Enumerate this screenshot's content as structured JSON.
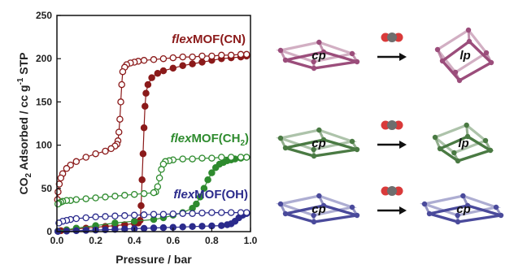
{
  "colors": {
    "CN": "#8b1a1a",
    "CH2": "#2e8b2e",
    "OH": "#2b2b8c",
    "pink_frame": "#9b4d7b",
    "green_frame": "#4a7a43",
    "blue_frame": "#4a4a9b",
    "co2_red": "#d93a3a",
    "co2_grey": "#6e6e6e"
  },
  "labels": {
    "cn": {
      "prefix": "flex",
      "suffix": "MOF(CN)"
    },
    "ch2": {
      "prefix": "flex",
      "suffix": "MOF(CH",
      "sub": "2",
      "close": ")"
    },
    "oh": {
      "prefix": "flex",
      "suffix": "MOF(OH)"
    }
  },
  "structures": [
    {
      "row": "cn",
      "before": "cp",
      "after": "lp",
      "frame_color": "pink_frame",
      "gas_icon": "co2-molecule-icon",
      "arrow": "right-arrow-icon"
    },
    {
      "row": "ch2",
      "before": "cp",
      "after": "lp",
      "frame_color": "green_frame",
      "gas_icon": "co2-molecule-icon",
      "arrow": "right-arrow-icon"
    },
    {
      "row": "oh",
      "before": "cp",
      "after": "cp",
      "frame_color": "blue_frame",
      "gas_icon": "co2-molecule-icon",
      "arrow": "right-arrow-icon"
    }
  ],
  "chart_data": {
    "type": "scatter",
    "title": "",
    "xlabel": "Pressure / bar",
    "ylabel": {
      "a": "CO",
      "sub": "2",
      "b": " Adsorbed / cc g",
      "sup": "-1",
      "c": " STP"
    },
    "xlim": [
      0.0,
      1.0
    ],
    "ylim": [
      0,
      250
    ],
    "xticks": [
      "0.0",
      "0.2",
      "0.4",
      "0.6",
      "0.8",
      "1.0"
    ],
    "yticks": [
      "0",
      "50",
      "100",
      "150",
      "200",
      "250"
    ],
    "grid": false,
    "series": [
      {
        "name": "flexMOF(CN)",
        "branch": "adsorption",
        "color_key": "CN",
        "filled": true,
        "x": [
          0.005,
          0.02,
          0.05,
          0.1,
          0.15,
          0.2,
          0.25,
          0.3,
          0.35,
          0.4,
          0.42,
          0.43,
          0.435,
          0.44,
          0.445,
          0.45,
          0.455,
          0.46,
          0.47,
          0.49,
          0.52,
          0.55,
          0.6,
          0.65,
          0.7,
          0.75,
          0.8,
          0.85,
          0.9,
          0.95,
          0.98
        ],
        "y": [
          0.5,
          1,
          2,
          3,
          4,
          5,
          6,
          7,
          8,
          9.5,
          10,
          13,
          30,
          60,
          90,
          120,
          145,
          160,
          170,
          178,
          183,
          186,
          189,
          192,
          194,
          196,
          198,
          200,
          201,
          202,
          203
        ]
      },
      {
        "name": "flexMOF(CN)",
        "branch": "desorption",
        "color_key": "CN",
        "filled": false,
        "x": [
          0.98,
          0.95,
          0.9,
          0.85,
          0.8,
          0.75,
          0.7,
          0.65,
          0.6,
          0.55,
          0.5,
          0.45,
          0.42,
          0.4,
          0.38,
          0.36,
          0.35,
          0.34,
          0.335,
          0.33,
          0.325,
          0.32,
          0.315,
          0.31,
          0.3,
          0.28,
          0.25,
          0.2,
          0.15,
          0.1,
          0.07,
          0.05,
          0.03,
          0.02,
          0.012,
          0.006,
          0.003
        ],
        "y": [
          205,
          205,
          204,
          204,
          203,
          203,
          202,
          202,
          201,
          200,
          199,
          198,
          197,
          196,
          195,
          193,
          190,
          185,
          170,
          150,
          130,
          115,
          105,
          101,
          99,
          96,
          93,
          90,
          86,
          81,
          77,
          73,
          67,
          62,
          55,
          46,
          37
        ]
      },
      {
        "name": "flexMOF(CH2)",
        "branch": "adsorption",
        "color_key": "CH2",
        "filled": true,
        "x": [
          0.005,
          0.05,
          0.1,
          0.2,
          0.3,
          0.4,
          0.5,
          0.55,
          0.6,
          0.65,
          0.7,
          0.72,
          0.74,
          0.76,
          0.78,
          0.8,
          0.82,
          0.84,
          0.86,
          0.88,
          0.9,
          0.92,
          0.95,
          0.98
        ],
        "y": [
          0.5,
          2,
          4,
          7,
          10,
          12,
          14,
          16,
          19,
          22,
          27,
          32,
          40,
          50,
          60,
          68,
          74,
          78,
          80,
          82,
          83,
          84,
          85,
          86
        ]
      },
      {
        "name": "flexMOF(CH2)",
        "branch": "desorption",
        "color_key": "CH2",
        "filled": false,
        "x": [
          0.98,
          0.95,
          0.9,
          0.85,
          0.8,
          0.75,
          0.7,
          0.65,
          0.6,
          0.58,
          0.56,
          0.55,
          0.54,
          0.53,
          0.52,
          0.51,
          0.5,
          0.45,
          0.4,
          0.35,
          0.3,
          0.25,
          0.2,
          0.15,
          0.1,
          0.07,
          0.05,
          0.03,
          0.02,
          0.01,
          0.005
        ],
        "y": [
          86,
          86,
          86,
          86,
          85,
          85,
          84,
          84,
          83,
          82,
          81,
          78,
          72,
          62,
          52,
          46,
          45,
          44,
          43,
          42,
          41,
          40,
          39,
          38,
          37,
          36,
          36,
          35,
          34,
          33,
          32
        ]
      },
      {
        "name": "flexMOF(OH)",
        "branch": "adsorption",
        "color_key": "OH",
        "filled": true,
        "x": [
          0.005,
          0.05,
          0.1,
          0.15,
          0.2,
          0.25,
          0.3,
          0.35,
          0.4,
          0.45,
          0.5,
          0.55,
          0.6,
          0.65,
          0.7,
          0.75,
          0.8,
          0.85,
          0.88,
          0.9,
          0.92,
          0.94,
          0.96,
          0.98
        ],
        "y": [
          0.2,
          0.6,
          1,
          1.4,
          1.8,
          2.2,
          2.6,
          3,
          3.4,
          3.8,
          4.2,
          4.6,
          5,
          5.4,
          5.8,
          6.2,
          6.6,
          7,
          8,
          9,
          12,
          16,
          19,
          21
        ]
      },
      {
        "name": "flexMOF(OH)",
        "branch": "desorption",
        "color_key": "OH",
        "filled": false,
        "x": [
          0.98,
          0.95,
          0.9,
          0.85,
          0.8,
          0.75,
          0.7,
          0.65,
          0.6,
          0.55,
          0.5,
          0.45,
          0.4,
          0.35,
          0.3,
          0.25,
          0.2,
          0.15,
          0.1,
          0.07,
          0.05,
          0.03,
          0.01
        ],
        "y": [
          22,
          22,
          22,
          22,
          22,
          21.5,
          21,
          21,
          20.5,
          20,
          20,
          19.5,
          19,
          18.5,
          18,
          17.5,
          17,
          16,
          15,
          14,
          13,
          12,
          10
        ]
      }
    ]
  }
}
